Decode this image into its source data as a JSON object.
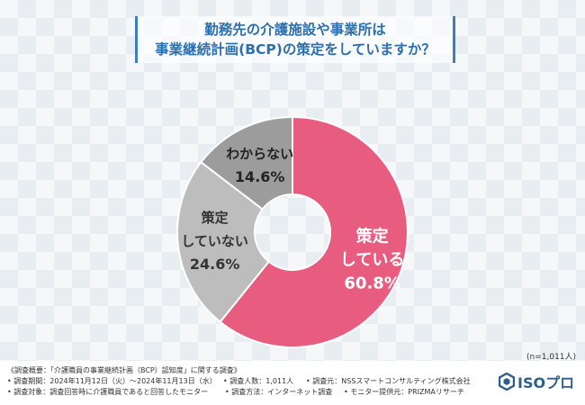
{
  "title": {
    "line1": "勤務先の介護施設や事業所は",
    "line2": "事業継続計画(BCP)の策定をしていますか？"
  },
  "chart_data": {
    "type": "pie",
    "style": "donut",
    "slices": [
      {
        "label_lines": [
          "策定",
          "している"
        ],
        "value": 60.8,
        "value_text": "60.8%",
        "color": "#e85c7f",
        "text_color": "#ffffff"
      },
      {
        "label_lines": [
          "策定",
          "していない"
        ],
        "value": 24.6,
        "value_text": "24.6%",
        "color": "#bdbdbd",
        "text_color": "#333333"
      },
      {
        "label_lines": [
          "わからない"
        ],
        "value": 14.6,
        "value_text": "14.6%",
        "color": "#9c9c9c",
        "text_color": "#222222"
      }
    ]
  },
  "sample_note": "(n=1,011人)",
  "footer": {
    "survey_overview": "《調査概要：「介護職員の事業継続計画（BCP）認知度」に関する調査》",
    "period": "• 調査期間：2024年11月12日（火）〜2024年11月13日（水）",
    "count": "• 調査人数：1,011人",
    "source": "• 調査元：NSSスマートコンサルティング株式会社",
    "target": "• 調査対象：調査回答時に介護職員であると回答したモニター",
    "method": "• 調査方法：インターネット調査",
    "provider": "• モニター提供元：PRIZMAリサーチ"
  },
  "logo": {
    "text": "ISOプロ",
    "icon": "hexagon-logo-icon",
    "color": "#2e5e8c"
  }
}
